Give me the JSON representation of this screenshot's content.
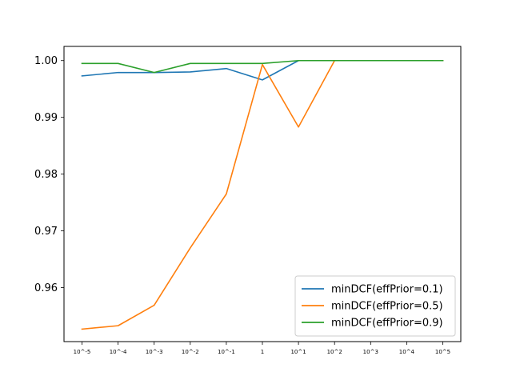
{
  "chart_data": {
    "type": "line",
    "title": "",
    "xlabel": "",
    "ylabel": "",
    "categories": [
      "10^-5",
      "10^-4",
      "10^-3",
      "10^-2",
      "10^-1",
      "1",
      "10^1",
      "10^2",
      "10^3",
      "10^4",
      "10^5"
    ],
    "ylim": [
      0.9505,
      1.0025
    ],
    "yticks": [
      0.96,
      0.97,
      0.98,
      0.99,
      1.0
    ],
    "ytick_labels": [
      "0.96",
      "0.97",
      "0.98",
      "0.99",
      "1.00"
    ],
    "grid": false,
    "legend_position": "lower-right",
    "series": [
      {
        "name": "minDCF(effPrior=0.1)",
        "color": "#1f77b4",
        "values": [
          0.9973,
          0.9979,
          0.9979,
          0.998,
          0.9986,
          0.9966,
          1.0,
          1.0,
          1.0,
          1.0,
          1.0
        ]
      },
      {
        "name": "minDCF(effPrior=0.5)",
        "color": "#ff7f0e",
        "values": [
          0.9527,
          0.9533,
          0.9569,
          0.967,
          0.9765,
          0.9993,
          0.9883,
          1.0,
          1.0,
          1.0,
          1.0
        ]
      },
      {
        "name": "minDCF(effPrior=0.9)",
        "color": "#2ca02c",
        "values": [
          0.9995,
          0.9995,
          0.9979,
          0.9995,
          0.9995,
          0.9995,
          1.0,
          1.0,
          1.0,
          1.0,
          1.0
        ]
      }
    ]
  }
}
